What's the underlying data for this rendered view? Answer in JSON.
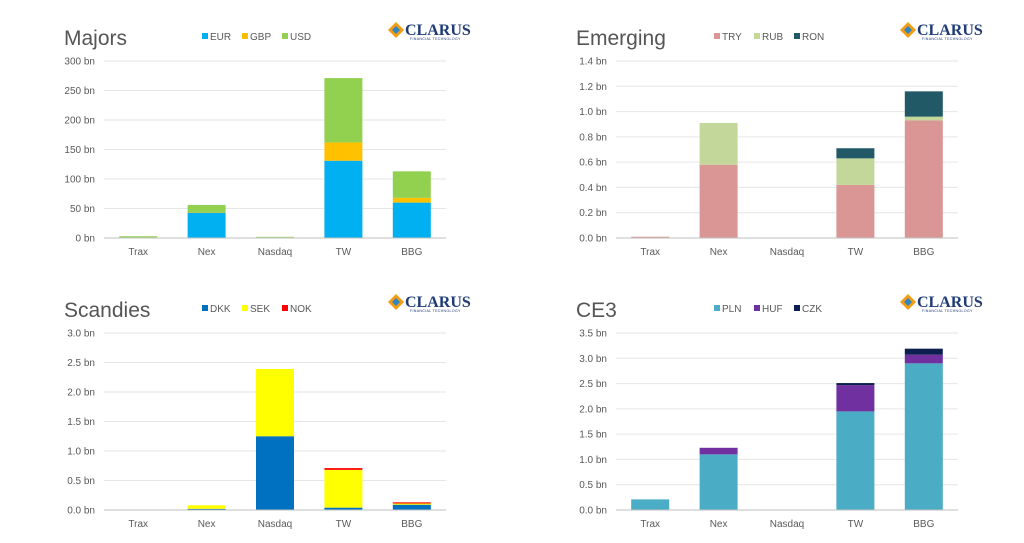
{
  "logo": {
    "name": "CLARUS",
    "tagline": "FINANCIAL TECHNOLOGY"
  },
  "chart_data": [
    {
      "type": "bar",
      "stacked": true,
      "title": "Majors",
      "categories": [
        "Trax",
        "Nex",
        "Nasdaq",
        "TW",
        "BBG"
      ],
      "ylim": [
        0,
        300
      ],
      "yticks": [
        0,
        50,
        100,
        150,
        200,
        250,
        300
      ],
      "ytick_labels": [
        "0 bn",
        "50 bn",
        "100 bn",
        "150 bn",
        "200 bn",
        "250 bn",
        "300 bn"
      ],
      "legend_position": "top",
      "series": [
        {
          "name": "EUR",
          "color": "#00b0f0",
          "values": [
            1,
            43,
            1,
            131,
            60
          ]
        },
        {
          "name": "GBP",
          "color": "#ffc000",
          "values": [
            0,
            1,
            0,
            31,
            8
          ]
        },
        {
          "name": "USD",
          "color": "#92d050",
          "values": [
            2,
            12,
            1,
            109,
            45
          ]
        }
      ]
    },
    {
      "type": "bar",
      "stacked": true,
      "title": "Emerging",
      "categories": [
        "Trax",
        "Nex",
        "Nasdaq",
        "TW",
        "BBG"
      ],
      "ylim": [
        0,
        14
      ],
      "yticks": [
        0,
        2,
        4,
        6,
        8,
        10,
        12,
        14
      ],
      "ytick_labels": [
        "0.0 bn",
        "0.2 bn",
        "0.4 bn",
        "0.6 bn",
        "0.8 bn",
        "1.0 bn",
        "1.2 bn",
        "1.4 bn"
      ],
      "legend_position": "top",
      "series": [
        {
          "name": "TRY",
          "color": "#da9694",
          "values": [
            0.1,
            5.8,
            0,
            4.2,
            9.3
          ]
        },
        {
          "name": "RUB",
          "color": "#c4d79b",
          "values": [
            0,
            3.3,
            0,
            2.1,
            0.3
          ]
        },
        {
          "name": "RON",
          "color": "#215967",
          "values": [
            0,
            0,
            0,
            0.8,
            2.0
          ]
        }
      ]
    },
    {
      "type": "bar",
      "stacked": true,
      "title": "Scandies",
      "categories": [
        "Trax",
        "Nex",
        "Nasdaq",
        "TW",
        "BBG"
      ],
      "ylim": [
        0,
        3.0
      ],
      "yticks": [
        0,
        0.5,
        1.0,
        1.5,
        2.0,
        2.5,
        3.0
      ],
      "ytick_labels": [
        "0.0 bn",
        "0.5 bn",
        "1.0 bn",
        "1.5 bn",
        "2.0 bn",
        "2.5 bn",
        "3.0 bn"
      ],
      "legend_position": "top",
      "series": [
        {
          "name": "DKK",
          "color": "#0070c0",
          "values": [
            0,
            0.02,
            1.25,
            0.04,
            0.09
          ]
        },
        {
          "name": "SEK",
          "color": "#ffff00",
          "values": [
            0,
            0.06,
            1.14,
            0.64,
            0.02
          ]
        },
        {
          "name": "NOK",
          "color": "#ff0000",
          "values": [
            0,
            0,
            0,
            0.03,
            0.02
          ]
        }
      ]
    },
    {
      "type": "bar",
      "stacked": true,
      "title": "CE3",
      "categories": [
        "Trax",
        "Nex",
        "Nasdaq",
        "TW",
        "BBG"
      ],
      "ylim": [
        0,
        3.5
      ],
      "yticks": [
        0,
        0.5,
        1.0,
        1.5,
        2.0,
        2.5,
        3.0,
        3.5
      ],
      "ytick_labels": [
        "0.0 bn",
        "0.5 bn",
        "1.0 bn",
        "1.5 bn",
        "2.0 bn",
        "2.5 bn",
        "3.0 bn",
        "3.5 bn"
      ],
      "legend_position": "top",
      "series": [
        {
          "name": "PLN",
          "color": "#4bacc6",
          "values": [
            0.21,
            1.1,
            0,
            1.95,
            2.9
          ]
        },
        {
          "name": "HUF",
          "color": "#7030a0",
          "values": [
            0,
            0.13,
            0,
            0.52,
            0.17
          ]
        },
        {
          "name": "CZK",
          "color": "#0d1f4f",
          "values": [
            0,
            0,
            0,
            0.04,
            0.12
          ]
        }
      ]
    }
  ]
}
